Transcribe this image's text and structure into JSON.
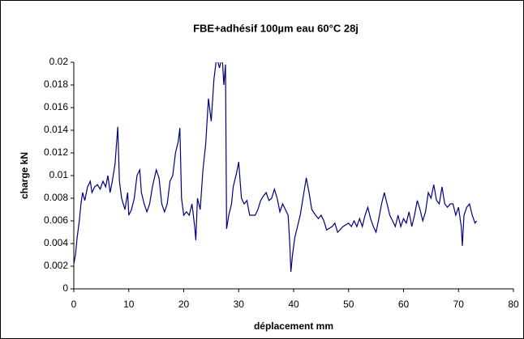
{
  "chart_data": {
    "type": "line",
    "title": "FBE+adhésif 100µm eau 60°C 28j",
    "x_label": "déplacement mm",
    "y_label": "charge kN",
    "xlim": [
      0,
      80
    ],
    "xticks": [
      0,
      10,
      20,
      30,
      40,
      50,
      60,
      70,
      80
    ],
    "ylim": [
      0,
      0.02
    ],
    "yticks": [
      0,
      0.002,
      0.004,
      0.006,
      0.008,
      0.01,
      0.012,
      0.014,
      0.016,
      0.018,
      0.02
    ],
    "series": [
      {
        "color": "#000080",
        "x": [
          0,
          0.3,
          0.6,
          1,
          1.3,
          1.6,
          2,
          2.5,
          3,
          3.3,
          3.8,
          4.3,
          4.8,
          5.3,
          5.8,
          6.2,
          6.6,
          7,
          7.5,
          8,
          8.3,
          8.7,
          9.3,
          9.8,
          10,
          10.5,
          11,
          11.5,
          12,
          12.3,
          12.8,
          13.3,
          13.8,
          14.3,
          15,
          15.5,
          16,
          16.5,
          17,
          17.5,
          18,
          18.5,
          19,
          19.3,
          19.6,
          20,
          20.5,
          21,
          21.5,
          22,
          22.2,
          22.5,
          23,
          23.5,
          24,
          24.5,
          25,
          25.5,
          26,
          26.5,
          27,
          27.3,
          27.6,
          27.8,
          28.2,
          28.7,
          29,
          29.6,
          30,
          30.5,
          31,
          31.5,
          32,
          33,
          33.5,
          34,
          34.5,
          35,
          35.5,
          36,
          36.5,
          37,
          37.5,
          38,
          38.5,
          39,
          39.3,
          39.5,
          39.8,
          40.2,
          40.7,
          41.2,
          41.7,
          42.3,
          42.8,
          43.3,
          44,
          44.5,
          45,
          45.5,
          46,
          47,
          47.5,
          48,
          49,
          50,
          50.5,
          51,
          51.5,
          52,
          52.5,
          53,
          53.5,
          54,
          54.5,
          55,
          55.5,
          56,
          56.5,
          57,
          57.5,
          58,
          58.5,
          59,
          59.5,
          60,
          60.5,
          61,
          61.5,
          62,
          62.5,
          63,
          63.5,
          64,
          64.5,
          65,
          65.5,
          66,
          66.5,
          67,
          67.5,
          68,
          68.5,
          69,
          69.5,
          70,
          70.5,
          70.7,
          71,
          71.5,
          72,
          72.5,
          73,
          73.3
        ],
        "values": [
          0.0022,
          0.003,
          0.0045,
          0.006,
          0.0075,
          0.0085,
          0.0078,
          0.009,
          0.0095,
          0.0085,
          0.009,
          0.0092,
          0.0088,
          0.0095,
          0.009,
          0.01,
          0.0085,
          0.0095,
          0.011,
          0.0143,
          0.0095,
          0.008,
          0.007,
          0.0085,
          0.0065,
          0.007,
          0.008,
          0.01,
          0.0105,
          0.0085,
          0.0075,
          0.0068,
          0.0075,
          0.009,
          0.0105,
          0.0098,
          0.0075,
          0.0068,
          0.0075,
          0.0095,
          0.01,
          0.012,
          0.013,
          0.0142,
          0.008,
          0.0065,
          0.0068,
          0.0065,
          0.0075,
          0.0055,
          0.0043,
          0.008,
          0.007,
          0.0105,
          0.0128,
          0.0168,
          0.0148,
          0.0185,
          0.0205,
          0.0195,
          0.0205,
          0.018,
          0.0198,
          0.0053,
          0.0065,
          0.0075,
          0.009,
          0.0102,
          0.0112,
          0.008,
          0.0075,
          0.0078,
          0.0065,
          0.0065,
          0.007,
          0.0078,
          0.0082,
          0.0085,
          0.0078,
          0.008,
          0.0088,
          0.008,
          0.0068,
          0.0075,
          0.007,
          0.0065,
          0.004,
          0.0015,
          0.003,
          0.0045,
          0.0055,
          0.0065,
          0.008,
          0.0098,
          0.0085,
          0.007,
          0.0065,
          0.0062,
          0.0065,
          0.006,
          0.0052,
          0.0055,
          0.0058,
          0.005,
          0.0055,
          0.0058,
          0.0055,
          0.006,
          0.0055,
          0.0062,
          0.0055,
          0.0065,
          0.0072,
          0.0062,
          0.0055,
          0.005,
          0.0062,
          0.0075,
          0.0085,
          0.0075,
          0.0065,
          0.006,
          0.0055,
          0.0065,
          0.0055,
          0.0062,
          0.0058,
          0.0068,
          0.0055,
          0.0065,
          0.0078,
          0.007,
          0.006,
          0.0068,
          0.0085,
          0.008,
          0.0092,
          0.0078,
          0.0075,
          0.009,
          0.0075,
          0.0072,
          0.0075,
          0.0075,
          0.0065,
          0.0072,
          0.0055,
          0.0038,
          0.0065,
          0.0072,
          0.0075,
          0.0065,
          0.0058,
          0.006
        ]
      }
    ]
  }
}
